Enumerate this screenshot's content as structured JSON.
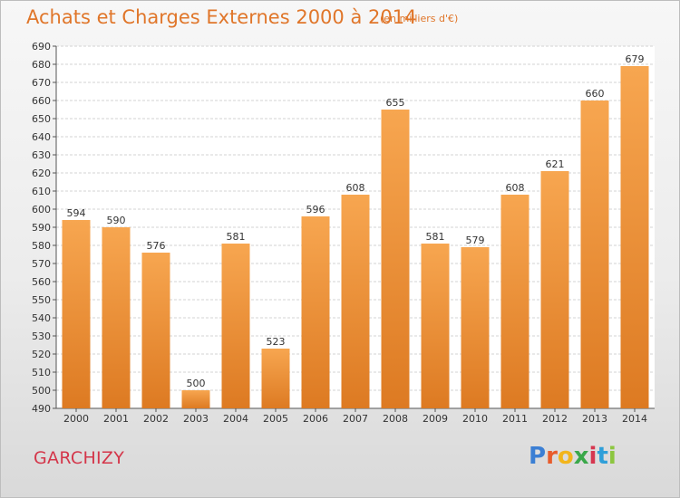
{
  "chart_data": {
    "type": "bar",
    "title": "Achats et Charges Externes 2000 à 2014",
    "subtitle": "(en milliers d'€)",
    "categories": [
      "2000",
      "2001",
      "2002",
      "2003",
      "2004",
      "2005",
      "2006",
      "2007",
      "2008",
      "2009",
      "2010",
      "2011",
      "2012",
      "2013",
      "2014"
    ],
    "values": [
      594,
      590,
      576,
      500,
      581,
      523,
      596,
      608,
      655,
      581,
      579,
      608,
      621,
      660,
      679
    ],
    "ylim": [
      490,
      690
    ],
    "ytick_step": 10,
    "xlabel": "",
    "ylabel": "",
    "grid": true,
    "bar_color_top": "#f7a650",
    "bar_color_bottom": "#dd7a22"
  },
  "location_label": "GARCHIZY",
  "logo": {
    "letters": [
      {
        "ch": "P",
        "color": "#3b7fd4"
      },
      {
        "ch": "r",
        "color": "#e85c2c"
      },
      {
        "ch": "o",
        "color": "#f2b51c"
      },
      {
        "ch": "x",
        "color": "#3aa84a"
      },
      {
        "ch": "i",
        "color": "#d6364f"
      },
      {
        "ch": "t",
        "color": "#2f9fd9"
      },
      {
        "ch": "i",
        "color": "#8cc63f"
      }
    ]
  }
}
